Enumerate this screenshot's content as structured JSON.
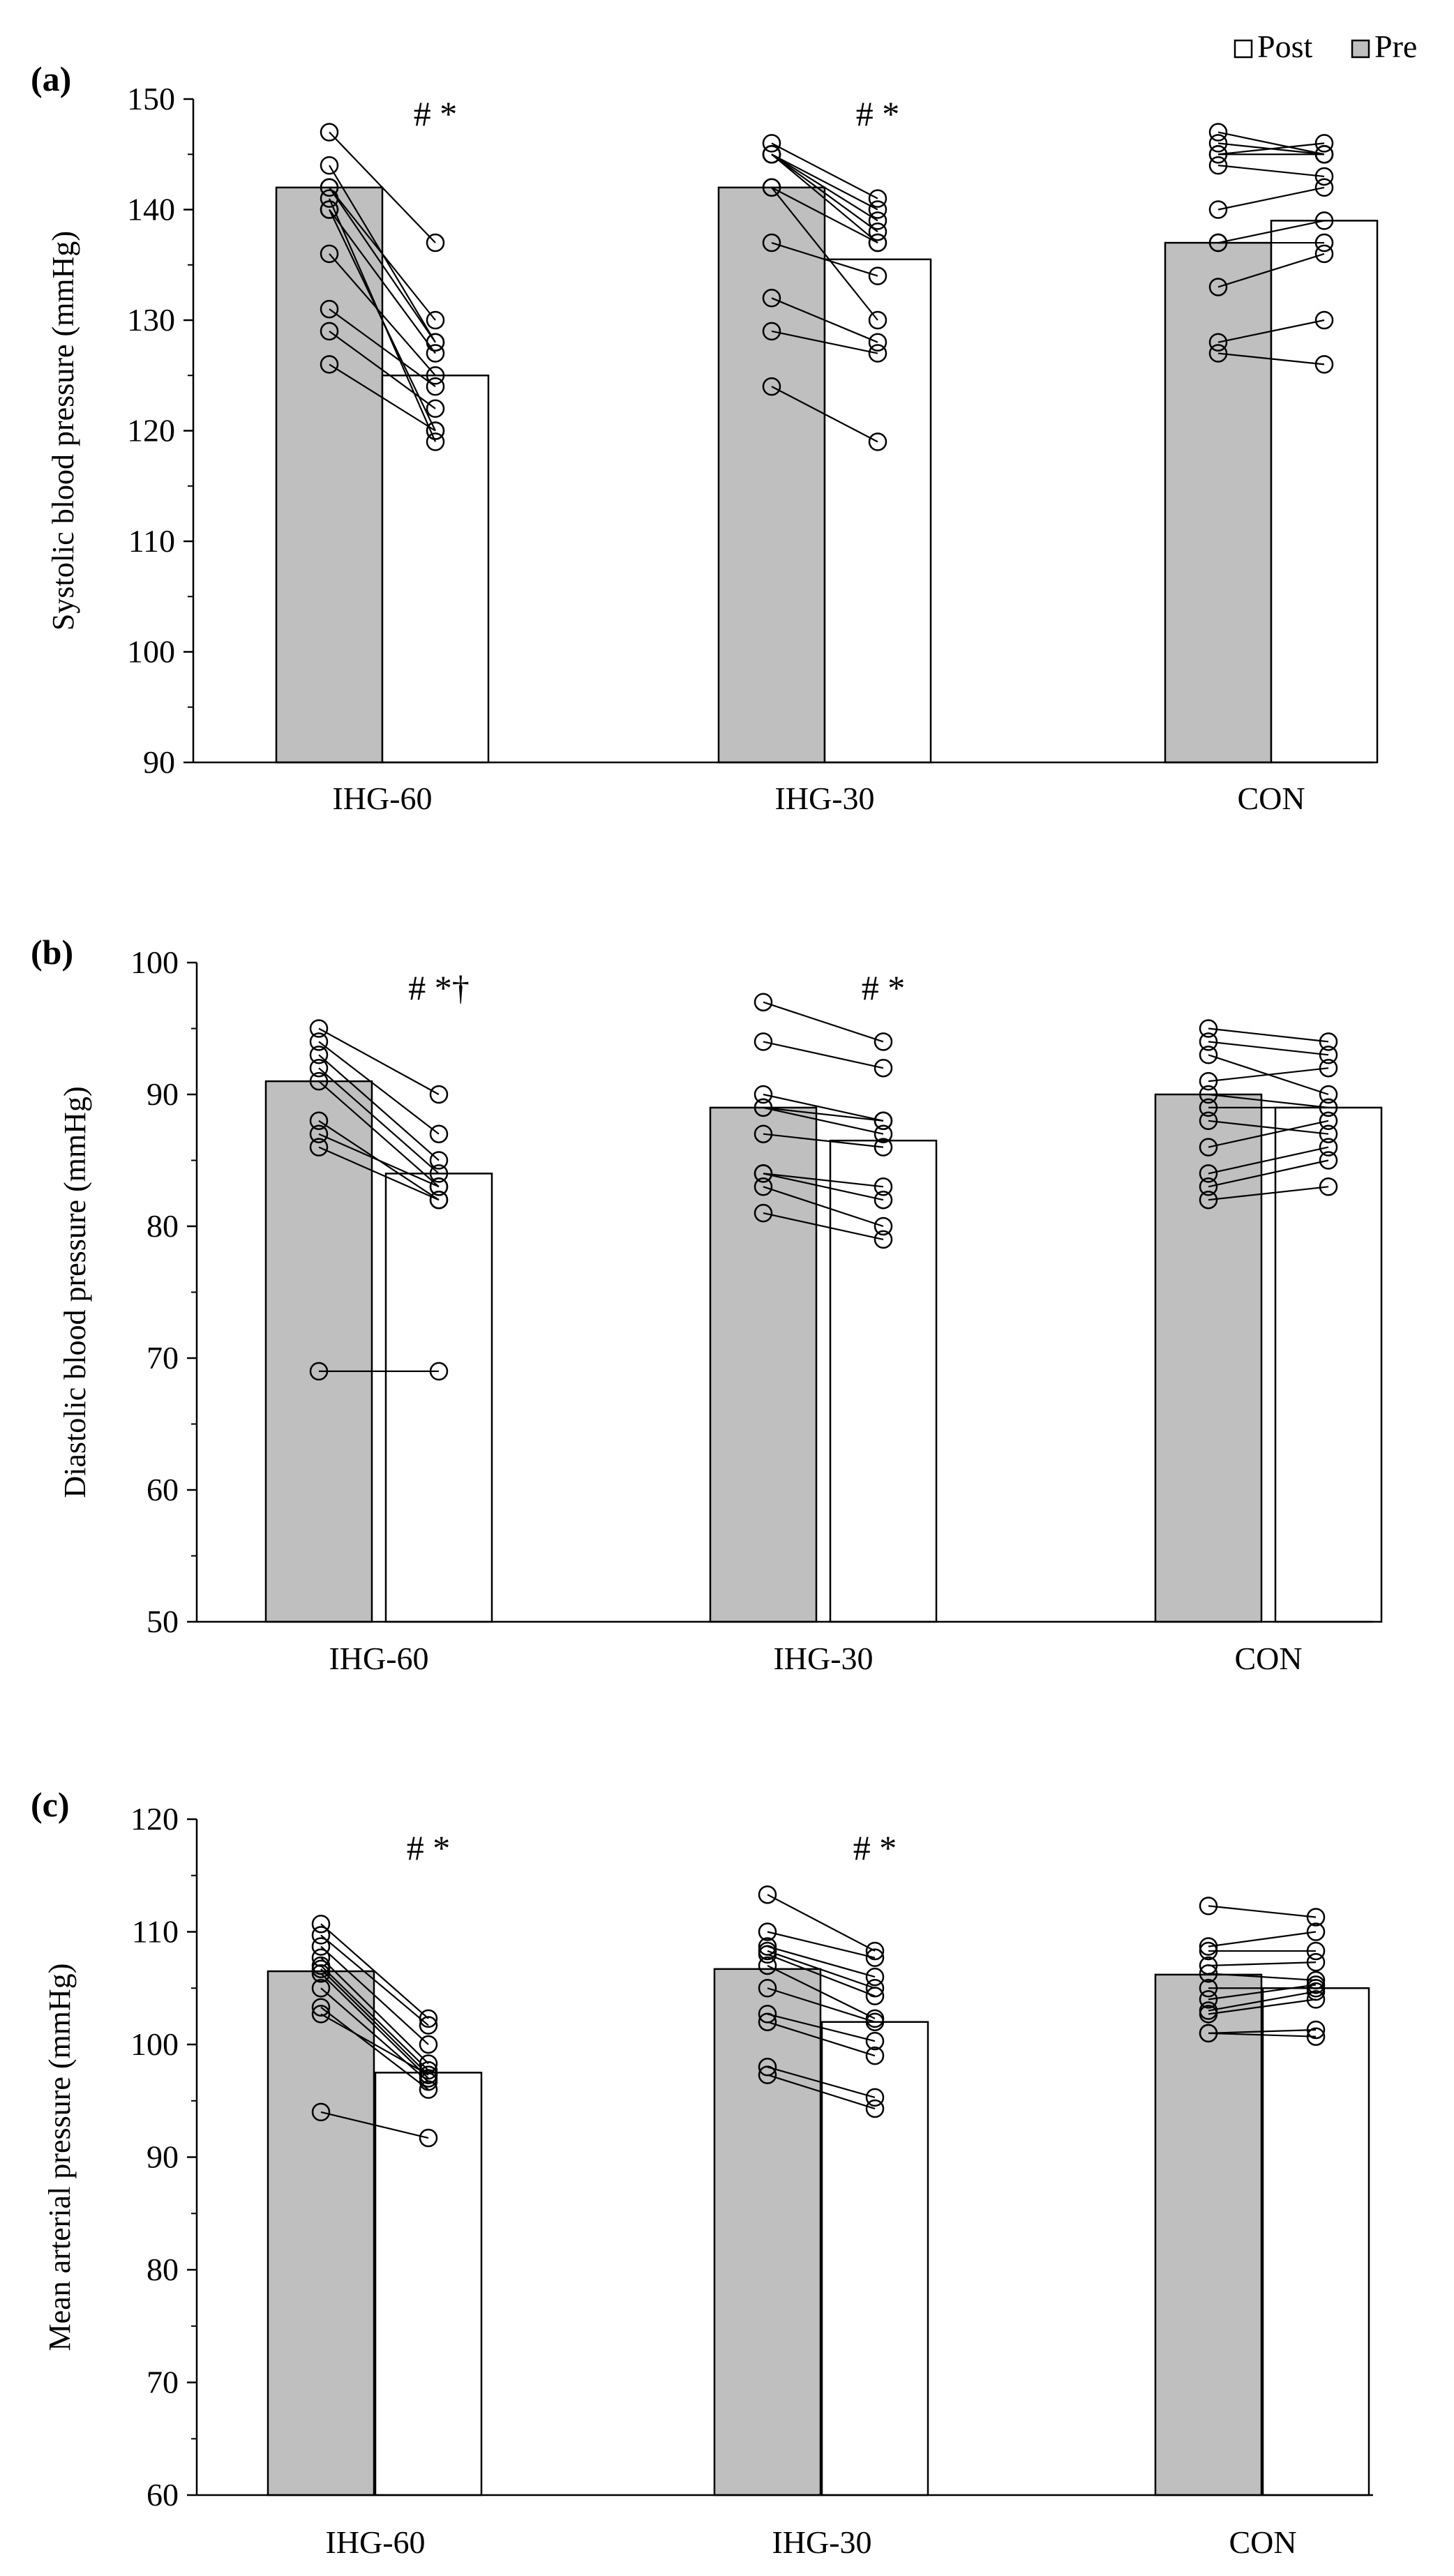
{
  "legend": {
    "items": [
      {
        "label": "Post",
        "color": "#ffffff"
      },
      {
        "label": "Pre",
        "color": "#bfbfbf"
      }
    ]
  },
  "colors": {
    "pre": "#bfbfbf",
    "post": "#ffffff",
    "stroke": "#000000"
  },
  "chart_data": [
    {
      "type": "bar",
      "panel_label": "(a)",
      "ylabel": "Systolic blood pressure (mmHg)",
      "ylim": [
        90,
        150
      ],
      "yticks": [
        90,
        100,
        110,
        120,
        130,
        140,
        150
      ],
      "categories": [
        "IHG-60",
        "IHG-30",
        "CON"
      ],
      "series": [
        {
          "name": "Pre",
          "values": [
            142,
            142,
            137
          ]
        },
        {
          "name": "Post",
          "values": [
            125,
            135.5,
            139
          ]
        }
      ],
      "annotations": [
        "# *",
        "# *",
        ""
      ],
      "individual": [
        {
          "pre": [
            147,
            144,
            142,
            140,
            136,
            131,
            129,
            126,
            142,
            141,
            140
          ],
          "post": [
            137,
            128,
            130,
            127,
            125,
            124,
            122,
            120,
            128,
            119,
            120
          ]
        },
        {
          "pre": [
            146,
            145,
            145,
            142,
            137,
            132,
            129,
            124,
            145,
            145,
            142
          ],
          "post": [
            141,
            140,
            139,
            137,
            134,
            128,
            127,
            119,
            138,
            137,
            130
          ]
        },
        {
          "pre": [
            147,
            146,
            145,
            144,
            140,
            137,
            133,
            128,
            127,
            137,
            145
          ],
          "post": [
            145,
            145,
            146,
            143,
            142,
            137,
            136,
            130,
            126,
            139,
            145
          ]
        }
      ]
    },
    {
      "type": "bar",
      "panel_label": "(b)",
      "ylabel": "Diastolic blood pressure (mmHg)",
      "ylim": [
        50,
        100
      ],
      "yticks": [
        50,
        60,
        70,
        80,
        90,
        100
      ],
      "categories": [
        "IHG-60",
        "IHG-30",
        "CON"
      ],
      "series": [
        {
          "name": "Pre",
          "values": [
            91,
            89,
            90
          ]
        },
        {
          "name": "Post",
          "values": [
            84,
            86.5,
            89
          ]
        }
      ],
      "annotations": [
        "# *†",
        "# *",
        ""
      ],
      "individual": [
        {
          "pre": [
            95,
            94,
            93,
            92,
            91,
            88,
            87,
            86,
            69
          ],
          "post": [
            90,
            87,
            85,
            84,
            83,
            82,
            83,
            82,
            69
          ]
        },
        {
          "pre": [
            97,
            94,
            90,
            89,
            87,
            84,
            83,
            81,
            89,
            84
          ],
          "post": [
            94,
            92,
            88,
            87,
            86,
            83,
            80,
            79,
            88,
            82
          ]
        },
        {
          "pre": [
            95,
            94,
            93,
            91,
            90,
            89,
            88,
            86,
            84,
            83,
            82
          ],
          "post": [
            94,
            93,
            90,
            92,
            89,
            89,
            87,
            88,
            86,
            85,
            83
          ]
        }
      ]
    },
    {
      "type": "bar",
      "panel_label": "(c)",
      "ylabel": "Mean arterial pressure (mmHg)",
      "ylim": [
        60,
        120
      ],
      "yticks": [
        60,
        70,
        80,
        90,
        100,
        110,
        120
      ],
      "categories": [
        "IHG-60",
        "IHG-30",
        "CON"
      ],
      "series": [
        {
          "name": "Pre",
          "values": [
            106.5,
            106.7,
            106.2
          ]
        },
        {
          "name": "Post",
          "values": [
            97.5,
            102,
            105
          ]
        }
      ],
      "annotations": [
        "# *",
        "# *",
        ""
      ],
      "individual": [
        {
          "pre": [
            110.7,
            109.7,
            108.7,
            107.7,
            107.0,
            106.7,
            106.3,
            105.0,
            103.3,
            102.7,
            94.0
          ],
          "post": [
            102.3,
            101.7,
            100.0,
            98.3,
            97.7,
            97.3,
            97.0,
            96.7,
            96.0,
            97.3,
            91.7
          ]
        },
        {
          "pre": [
            113.3,
            110.0,
            108.7,
            108.3,
            108.0,
            107.0,
            105.0,
            102.7,
            102.0,
            98.0,
            97.3
          ],
          "post": [
            108.3,
            107.7,
            106.0,
            105.0,
            104.3,
            102.3,
            102.0,
            100.3,
            99.0,
            95.3,
            94.3
          ]
        },
        {
          "pre": [
            112.3,
            108.7,
            108.3,
            107.0,
            106.3,
            105.0,
            104.0,
            103.0,
            102.7,
            101.0,
            101.0
          ],
          "post": [
            111.3,
            110.0,
            108.3,
            107.3,
            105.7,
            105.0,
            105.3,
            104.7,
            104.0,
            101.3,
            100.7
          ]
        }
      ]
    }
  ]
}
